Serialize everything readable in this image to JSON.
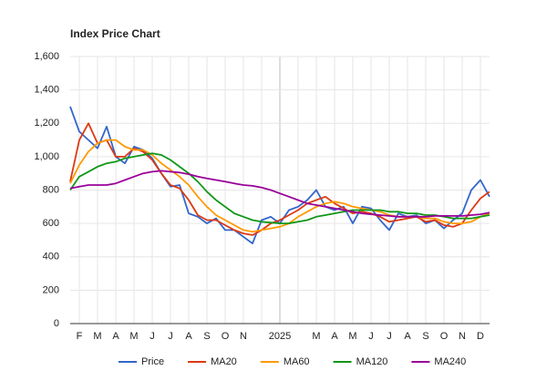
{
  "chart_data": {
    "type": "line",
    "title": "Index Price Chart",
    "categories": [
      null,
      "F",
      null,
      "M",
      null,
      "A",
      null,
      "M",
      null,
      "J",
      null,
      "J",
      null,
      "A",
      null,
      "S",
      null,
      "O",
      null,
      "N",
      null,
      null,
      null,
      "2025",
      null,
      null,
      null,
      "M",
      null,
      "A",
      null,
      "M",
      null,
      "J",
      null,
      "J",
      null,
      "A",
      null,
      "S",
      null,
      "O",
      null,
      "N",
      null,
      "D",
      null
    ],
    "series": [
      {
        "name": "Price",
        "color": "#3366cc",
        "values": [
          1300,
          1150,
          1100,
          1050,
          1180,
          1000,
          960,
          1060,
          1040,
          990,
          900,
          820,
          830,
          660,
          640,
          600,
          630,
          560,
          560,
          520,
          480,
          620,
          640,
          600,
          680,
          700,
          740,
          800,
          700,
          680,
          700,
          600,
          700,
          690,
          620,
          560,
          660,
          640,
          650,
          600,
          620,
          570,
          620,
          660,
          800,
          860,
          760
        ]
      },
      {
        "name": "MA20",
        "color": "#dc3912",
        "values": [
          850,
          1100,
          1200,
          1080,
          1100,
          1000,
          1000,
          1050,
          1030,
          980,
          900,
          830,
          810,
          740,
          650,
          620,
          620,
          590,
          560,
          540,
          530,
          560,
          600,
          620,
          650,
          680,
          720,
          740,
          760,
          720,
          690,
          660,
          670,
          660,
          640,
          610,
          620,
          630,
          640,
          610,
          620,
          590,
          580,
          600,
          680,
          750,
          790
        ]
      },
      {
        "name": "MA60",
        "color": "#ff9900",
        "values": [
          840,
          950,
          1030,
          1080,
          1100,
          1100,
          1060,
          1040,
          1040,
          1010,
          960,
          920,
          880,
          830,
          760,
          700,
          650,
          620,
          590,
          560,
          550,
          560,
          570,
          580,
          600,
          640,
          670,
          700,
          720,
          730,
          720,
          700,
          690,
          680,
          670,
          650,
          640,
          640,
          640,
          630,
          630,
          610,
          600,
          600,
          610,
          640,
          660
        ]
      },
      {
        "name": "MA120",
        "color": "#109618",
        "values": [
          800,
          880,
          910,
          940,
          960,
          970,
          990,
          1000,
          1010,
          1020,
          1010,
          980,
          940,
          900,
          850,
          790,
          740,
          700,
          660,
          640,
          620,
          610,
          605,
          600,
          600,
          610,
          620,
          640,
          650,
          660,
          670,
          680,
          680,
          680,
          680,
          670,
          670,
          660,
          660,
          650,
          650,
          640,
          630,
          630,
          630,
          640,
          650
        ]
      },
      {
        "name": "MA240",
        "color": "#990099",
        "values": [
          810,
          820,
          830,
          830,
          830,
          840,
          860,
          880,
          900,
          910,
          915,
          910,
          905,
          895,
          880,
          870,
          860,
          850,
          840,
          830,
          825,
          815,
          800,
          780,
          760,
          740,
          720,
          710,
          700,
          690,
          680,
          670,
          660,
          655,
          650,
          645,
          640,
          640,
          640,
          640,
          645,
          645,
          645,
          645,
          650,
          655,
          665
        ]
      }
    ],
    "ylim": [
      0,
      1600
    ],
    "yticks": [
      0,
      200,
      400,
      600,
      800,
      {
        "value": 1000,
        "label": "1,000"
      },
      {
        "value": 1200,
        "label": "1,200"
      },
      {
        "value": 1400,
        "label": "1,400"
      },
      {
        "value": 1600,
        "label": "1,600"
      }
    ],
    "grid": true,
    "legend": "bottom"
  }
}
